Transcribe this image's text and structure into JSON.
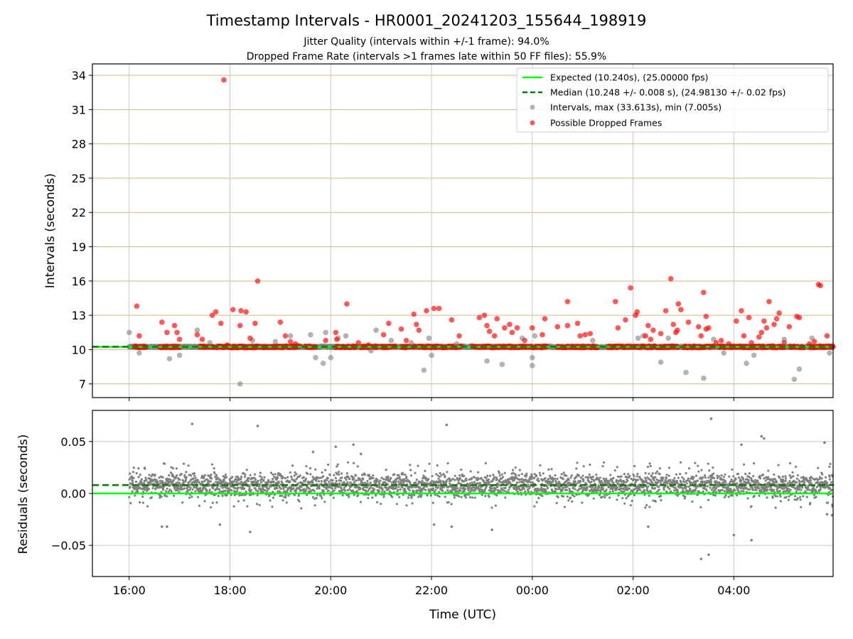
{
  "chart_data": [
    {
      "type": "scatter",
      "title": "Timestamp Intervals - HR0001_20241203_155644_198919",
      "subtitle_lines": [
        "Jitter Quality (intervals within +/-1 frame): 94.0%",
        "Dropped Frame Rate (intervals >1 frames late within 50 FF files): 55.9%"
      ],
      "ylabel": "Intervals (seconds)",
      "xlim_hours": [
        15.27,
        29.97
      ],
      "ylim": [
        5.8,
        35.0
      ],
      "yticks": [
        7,
        10,
        13,
        16,
        19,
        22,
        25,
        28,
        31,
        34
      ],
      "grid": true,
      "legend_position": "top-right",
      "legend": [
        "Expected (10.240s), (25.00000 fps)",
        "Median (10.248 +/- 0.008 s), (24.98130 +/- 0.02 fps)",
        "Intervals, max (33.613s), min (7.005s)",
        "Possible Dropped Frames"
      ],
      "expected_interval": 10.24,
      "median_interval": 10.248,
      "series": [
        {
          "name": "Intervals, max (33.613s), min (7.005s)",
          "color": "#808080",
          "points": [
            [
              16.0,
              11.5
            ],
            [
              16.2,
              9.7
            ],
            [
              16.8,
              9.2
            ],
            [
              17.0,
              9.5
            ],
            [
              17.35,
              11.7
            ],
            [
              17.6,
              10.6
            ],
            [
              18.2,
              7.0
            ],
            [
              18.45,
              10.8
            ],
            [
              18.9,
              10.7
            ],
            [
              19.2,
              11.2
            ],
            [
              19.6,
              11.3
            ],
            [
              19.7,
              9.3
            ],
            [
              19.85,
              8.8
            ],
            [
              19.9,
              11.5
            ],
            [
              20.0,
              9.3
            ],
            [
              20.15,
              11.0
            ],
            [
              20.3,
              11.2
            ],
            [
              20.8,
              9.9
            ],
            [
              20.9,
              11.7
            ],
            [
              21.2,
              10.8
            ],
            [
              21.6,
              10.6
            ],
            [
              21.85,
              8.2
            ],
            [
              21.95,
              11.0
            ],
            [
              22.0,
              9.5
            ],
            [
              22.5,
              10.5
            ],
            [
              23.1,
              9.0
            ],
            [
              23.4,
              8.7
            ],
            [
              23.8,
              11.0
            ],
            [
              24.0,
              8.6
            ],
            [
              24.05,
              11.2
            ],
            [
              24.0,
              9.3
            ],
            [
              25.2,
              10.8
            ],
            [
              26.1,
              11.0
            ],
            [
              26.2,
              11.2
            ],
            [
              26.55,
              8.9
            ],
            [
              26.7,
              11.0
            ],
            [
              27.05,
              8.0
            ],
            [
              27.4,
              7.5
            ],
            [
              27.6,
              10.9
            ],
            [
              27.8,
              9.7
            ],
            [
              28.25,
              8.8
            ],
            [
              28.4,
              9.5
            ],
            [
              29.2,
              7.4
            ],
            [
              29.3,
              8.3
            ],
            [
              29.55,
              11.0
            ],
            [
              29.9,
              9.7
            ],
            [
              29.0,
              10.9
            ]
          ]
        },
        {
          "name": "Possible Dropped Frames",
          "color": "#ff0000",
          "points": [
            [
              17.88,
              33.6
            ],
            [
              16.15,
              13.8
            ],
            [
              16.2,
              11.2
            ],
            [
              16.65,
              12.4
            ],
            [
              16.75,
              11.5
            ],
            [
              16.9,
              12.1
            ],
            [
              16.95,
              11.5
            ],
            [
              17.0,
              10.9
            ],
            [
              17.35,
              11.3
            ],
            [
              17.45,
              10.9
            ],
            [
              17.65,
              13.0
            ],
            [
              17.72,
              13.3
            ],
            [
              17.82,
              12.3
            ],
            [
              17.95,
              10.4
            ],
            [
              18.06,
              13.5
            ],
            [
              18.2,
              12.1
            ],
            [
              18.22,
              13.4
            ],
            [
              18.32,
              13.3
            ],
            [
              18.4,
              11.0
            ],
            [
              18.5,
              12.3
            ],
            [
              18.55,
              16.0
            ],
            [
              19.0,
              12.4
            ],
            [
              19.1,
              11.2
            ],
            [
              19.2,
              10.7
            ],
            [
              19.3,
              10.5
            ],
            [
              19.9,
              10.8
            ],
            [
              20.1,
              11.5
            ],
            [
              20.12,
              10.9
            ],
            [
              20.32,
              14.0
            ],
            [
              20.55,
              10.6
            ],
            [
              20.75,
              10.4
            ],
            [
              21.05,
              11.3
            ],
            [
              21.15,
              12.3
            ],
            [
              21.4,
              11.8
            ],
            [
              21.5,
              10.8
            ],
            [
              21.7,
              12.2
            ],
            [
              21.75,
              11.7
            ],
            [
              21.65,
              13.1
            ],
            [
              21.9,
              13.4
            ],
            [
              22.05,
              13.6
            ],
            [
              22.15,
              13.6
            ],
            [
              22.4,
              12.6
            ],
            [
              22.55,
              11.2
            ],
            [
              22.95,
              12.8
            ],
            [
              23.05,
              13.0
            ],
            [
              23.1,
              12.1
            ],
            [
              23.15,
              11.6
            ],
            [
              23.25,
              11.2
            ],
            [
              23.3,
              12.7
            ],
            [
              23.45,
              11.9
            ],
            [
              23.55,
              12.2
            ],
            [
              23.6,
              11.5
            ],
            [
              23.7,
              11.9
            ],
            [
              23.85,
              10.8
            ],
            [
              24.0,
              11.9
            ],
            [
              24.2,
              11.3
            ],
            [
              24.25,
              12.7
            ],
            [
              24.5,
              12.0
            ],
            [
              24.7,
              12.1
            ],
            [
              24.7,
              14.2
            ],
            [
              24.9,
              12.3
            ],
            [
              24.95,
              11.2
            ],
            [
              25.05,
              11.3
            ],
            [
              25.15,
              11.4
            ],
            [
              25.65,
              14.2
            ],
            [
              25.85,
              12.6
            ],
            [
              25.95,
              15.4
            ],
            [
              25.7,
              11.9
            ],
            [
              26.05,
              13.0
            ],
            [
              26.08,
              13.3
            ],
            [
              26.25,
              11.2
            ],
            [
              26.3,
              12.1
            ],
            [
              26.35,
              10.9
            ],
            [
              26.4,
              11.7
            ],
            [
              26.55,
              11.4
            ],
            [
              26.65,
              13.4
            ],
            [
              26.8,
              12.2
            ],
            [
              26.85,
              11.5
            ],
            [
              26.88,
              11.7
            ],
            [
              26.75,
              16.2
            ],
            [
              26.9,
              14.0
            ],
            [
              26.95,
              13.5
            ],
            [
              27.1,
              12.4
            ],
            [
              27.3,
              12.0
            ],
            [
              27.35,
              11.2
            ],
            [
              27.4,
              15.0
            ],
            [
              27.45,
              11.8
            ],
            [
              27.5,
              11.9
            ],
            [
              27.45,
              12.9
            ],
            [
              27.65,
              10.6
            ],
            [
              27.75,
              10.8
            ],
            [
              27.9,
              10.5
            ],
            [
              28.05,
              12.5
            ],
            [
              28.15,
              13.4
            ],
            [
              28.2,
              11.2
            ],
            [
              28.3,
              12.8
            ],
            [
              28.35,
              10.6
            ],
            [
              28.5,
              11.1
            ],
            [
              28.55,
              11.5
            ],
            [
              28.6,
              12.5
            ],
            [
              28.65,
              11.9
            ],
            [
              28.7,
              14.2
            ],
            [
              28.8,
              12.2
            ],
            [
              28.85,
              12.7
            ],
            [
              28.9,
              13.2
            ],
            [
              29.0,
              10.6
            ],
            [
              29.1,
              12.0
            ],
            [
              29.25,
              12.9
            ],
            [
              29.3,
              12.8
            ],
            [
              29.5,
              10.5
            ],
            [
              29.6,
              10.7
            ],
            [
              29.68,
              15.7
            ],
            [
              29.72,
              15.6
            ],
            [
              29.85,
              11.2
            ]
          ]
        }
      ],
      "bulk_band": {
        "y": 10.24,
        "x_start": 16.0,
        "x_end": 29.97
      }
    },
    {
      "type": "scatter",
      "xlabel": "Time (UTC)",
      "ylabel": "Residuals (seconds)",
      "xlim_hours": [
        15.27,
        29.97
      ],
      "ylim": [
        -0.08,
        0.08
      ],
      "yticks": [
        -0.05,
        0.0,
        0.05
      ],
      "ytick_labels": [
        "−0.05",
        "0.00",
        "0.05"
      ],
      "xticks": [
        16,
        18,
        20,
        22,
        24,
        26,
        28
      ],
      "xtick_labels": [
        "16:00",
        "18:00",
        "20:00",
        "22:00",
        "00:00",
        "02:00",
        "04:00"
      ],
      "grid": true,
      "expected_residual": 0.0,
      "median_residual": 0.008,
      "series": [
        {
          "name": "Residuals",
          "color": "#808080",
          "points": [
            [
              17.25,
              0.067
            ],
            [
              18.55,
              0.065
            ],
            [
              22.3,
              0.066
            ],
            [
              27.55,
              0.072
            ],
            [
              28.55,
              0.055
            ],
            [
              28.6,
              0.053
            ],
            [
              29.8,
              0.049
            ],
            [
              28.15,
              0.047
            ],
            [
              20.1,
              0.045
            ],
            [
              20.45,
              0.047
            ],
            [
              19.65,
              0.04
            ],
            [
              20.6,
              0.038
            ],
            [
              16.65,
              -0.032
            ],
            [
              16.75,
              -0.032
            ],
            [
              17.8,
              -0.03
            ],
            [
              18.4,
              -0.037
            ],
            [
              27.35,
              -0.063
            ],
            [
              27.5,
              -0.059
            ],
            [
              28.0,
              -0.04
            ],
            [
              28.35,
              -0.045
            ],
            [
              26.3,
              -0.032
            ],
            [
              23.2,
              -0.035
            ],
            [
              22.4,
              -0.032
            ],
            [
              22.05,
              -0.03
            ],
            [
              29.85,
              -0.02
            ],
            [
              29.95,
              -0.021
            ]
          ]
        }
      ],
      "bulk_band": {
        "y_center": 0.008,
        "y_spread": 0.013,
        "x_start": 16.0,
        "x_end": 29.97
      }
    }
  ],
  "colors": {
    "expected": "#00ff00",
    "median": "#008000",
    "hgrid_top": "#dab787",
    "grid": "#c8c8c8",
    "intervals": "#808080",
    "dropped": "#ff0000"
  }
}
